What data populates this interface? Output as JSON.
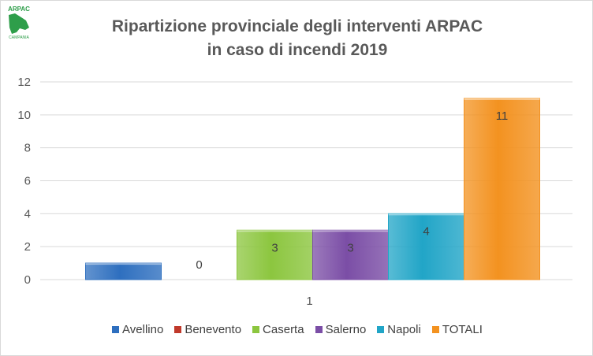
{
  "logo": {
    "text_top": "ARPAC",
    "text_bottom": "CAMPANIA",
    "color": "#2e9e4a"
  },
  "chart_data": {
    "type": "bar",
    "title_lines": [
      "Ripartizione provinciale degli interventi ARPAC",
      "in caso di incendi 2019"
    ],
    "categories": [
      "1"
    ],
    "series": [
      {
        "name": "Avellino",
        "values": [
          1
        ],
        "color": "#2e6fbf",
        "label": ""
      },
      {
        "name": "Benevento",
        "values": [
          0
        ],
        "color": "#c0392b",
        "label": "0"
      },
      {
        "name": "Caserta",
        "values": [
          3
        ],
        "color": "#8cc63f",
        "label": "3"
      },
      {
        "name": "Salerno",
        "values": [
          3
        ],
        "color": "#7b4ea6",
        "label": "3"
      },
      {
        "name": "Napoli",
        "values": [
          4
        ],
        "color": "#21a5c7",
        "label": "4"
      },
      {
        "name": "TOTALI",
        "values": [
          11
        ],
        "color": "#f39220",
        "label": "11"
      }
    ],
    "ylim": [
      0,
      12
    ],
    "yticks": [
      "0",
      "2",
      "4",
      "6",
      "8",
      "10",
      "12"
    ],
    "grid": true,
    "legend_position": "bottom"
  }
}
